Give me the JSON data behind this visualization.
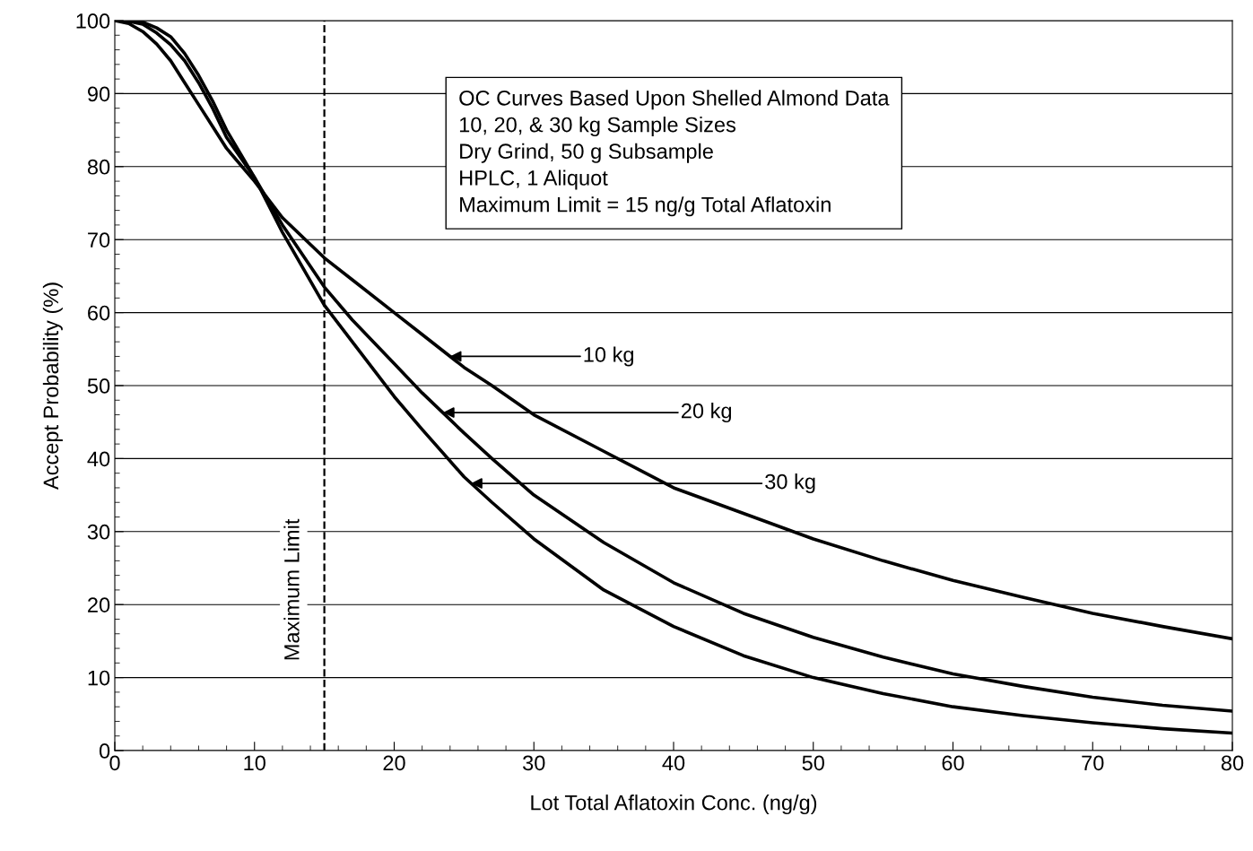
{
  "chart_data": {
    "type": "line",
    "xlabel": "Lot Total Aflatoxin Conc. (ng/g)",
    "ylabel": "Accept Probability (%)",
    "xlim": [
      0,
      80
    ],
    "ylim": [
      0,
      100
    ],
    "xticks": [
      0,
      10,
      20,
      30,
      40,
      50,
      60,
      70,
      80
    ],
    "yticks": [
      0,
      10,
      20,
      30,
      40,
      50,
      60,
      70,
      80,
      90,
      100
    ],
    "grid": "y",
    "legend": false,
    "marker": "none",
    "line_style": "solid",
    "x": [
      0,
      1,
      2,
      3,
      4,
      5,
      6,
      7,
      8,
      10,
      12,
      15,
      17,
      20,
      22,
      25,
      27,
      30,
      35,
      40,
      45,
      50,
      55,
      60,
      65,
      70,
      75,
      80
    ],
    "series": [
      {
        "color": "#000000",
        "values": [
          100,
          99.6,
          98.5,
          96.8,
          94.5,
          91.5,
          88.5,
          85.5,
          82.5,
          78,
          73,
          67.5,
          64.5,
          60,
          57,
          52.5,
          50,
          46,
          41,
          36,
          32.5,
          29,
          26,
          23.3,
          21,
          18.8,
          17,
          15.3
        ]
      },
      {
        "color": "#000000",
        "values": [
          100,
          99.9,
          99.5,
          98.3,
          96.7,
          94.5,
          91.5,
          88,
          84,
          78.5,
          72,
          63.5,
          59,
          53,
          49,
          43.5,
          40,
          35,
          28.5,
          23,
          18.8,
          15.5,
          12.8,
          10.5,
          8.8,
          7.3,
          6.2,
          5.4
        ]
      },
      {
        "color": "#000000",
        "values": [
          100,
          100,
          99.8,
          99,
          97.8,
          95.5,
          92.5,
          89,
          85,
          78.5,
          71,
          61,
          56,
          48.5,
          44,
          37.5,
          34,
          29,
          22,
          17,
          13,
          10,
          7.8,
          6,
          4.8,
          3.8,
          3,
          2.4
        ]
      }
    ],
    "ref_lines": [
      {
        "axis": "x",
        "value": 15,
        "label": "Maximum Limit",
        "color": "#000000",
        "line_style": "dashed"
      }
    ],
    "annotations": [
      "OC Curves Based Upon Shelled Almond Data\n10, 20, & 30 kg Sample Sizes\nDry Grind, 50 g Subsample\nHPLC, 1 Aliquot\nMaximum Limit = 15 ng/g Total Aflatoxin",
      {
        "text": "10 kg",
        "x": 24,
        "y": 54
      },
      {
        "text": "20 kg",
        "x": 23.5,
        "y": 46.3
      },
      {
        "text": "30 kg",
        "x": 25.5,
        "y": 36.6
      }
    ]
  }
}
